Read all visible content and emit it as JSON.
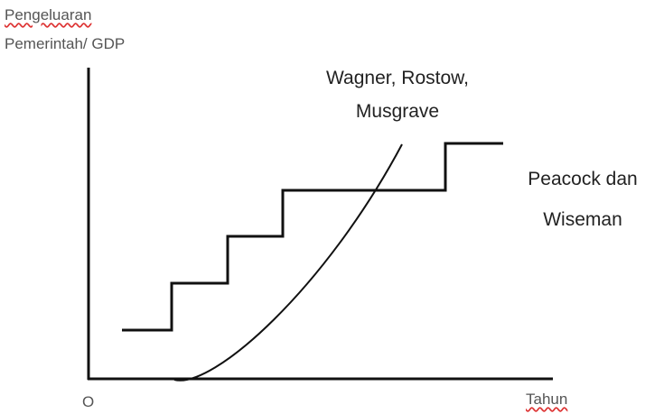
{
  "axes": {
    "y_label": [
      "Pengeluaran",
      "Pemerintah/ GDP"
    ],
    "origin": "O",
    "x_label": "Tahun"
  },
  "curves": [
    {
      "label": [
        "Wagner, Rostow,",
        "Musgrave"
      ]
    },
    {
      "label": [
        "Peacock dan",
        "Wiseman"
      ]
    }
  ]
}
